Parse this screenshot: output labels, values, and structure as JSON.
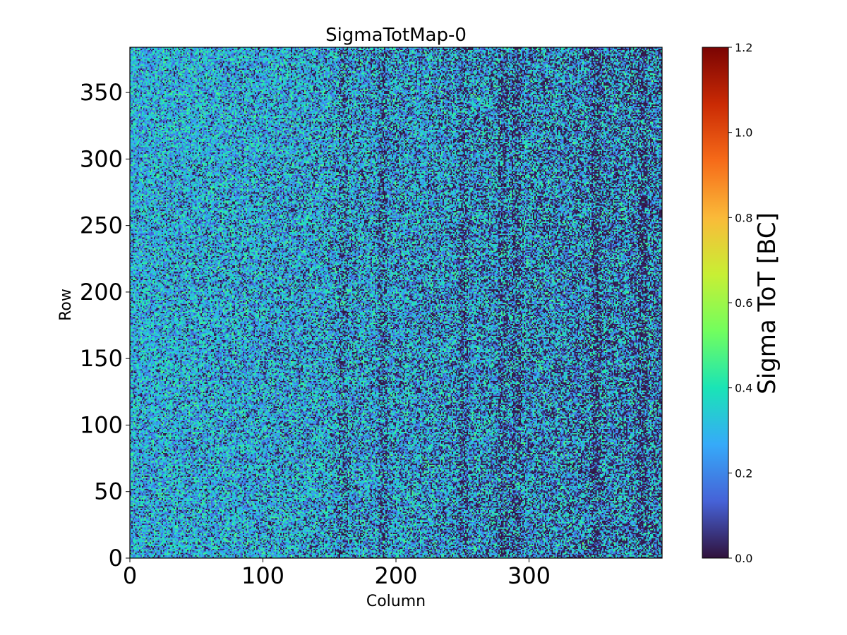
{
  "chart_data": {
    "type": "heatmap",
    "title": "SigmaTotMap-0",
    "xlabel": "Column",
    "ylabel": "Row",
    "xlim": [
      0,
      400
    ],
    "ylim": [
      0,
      384
    ],
    "x_ticks": [
      0,
      100,
      200,
      300
    ],
    "x_tick_labels": [
      "0",
      "100",
      "200",
      "300"
    ],
    "y_ticks": [
      0,
      50,
      100,
      150,
      200,
      250,
      300,
      350
    ],
    "y_tick_labels": [
      "0",
      "50",
      "100",
      "150",
      "200",
      "250",
      "300",
      "350"
    ],
    "colormap": "turbo",
    "colorbar": {
      "label": "Sigma ToT [BC]",
      "range": [
        0.0,
        1.2
      ],
      "ticks": [
        0.0,
        0.2,
        0.4,
        0.6,
        0.8,
        1.0,
        1.2
      ],
      "tick_labels": [
        "0.0",
        "0.2",
        "0.4",
        "0.6",
        "0.8",
        "1.0",
        "1.2"
      ]
    },
    "grid": false,
    "value_distribution": "pixel noise mostly between 0.0 and 0.5 BC; many zero-valued pixels, denser toward higher columns (about 150 to 400) with vertical dark bands",
    "colormap_stops": [
      "#30123b",
      "#4662d7",
      "#36aaf9",
      "#1ae4b6",
      "#72fe5e",
      "#c8ef34",
      "#faba39",
      "#f66b19",
      "#ca2a04",
      "#7a0403"
    ]
  }
}
